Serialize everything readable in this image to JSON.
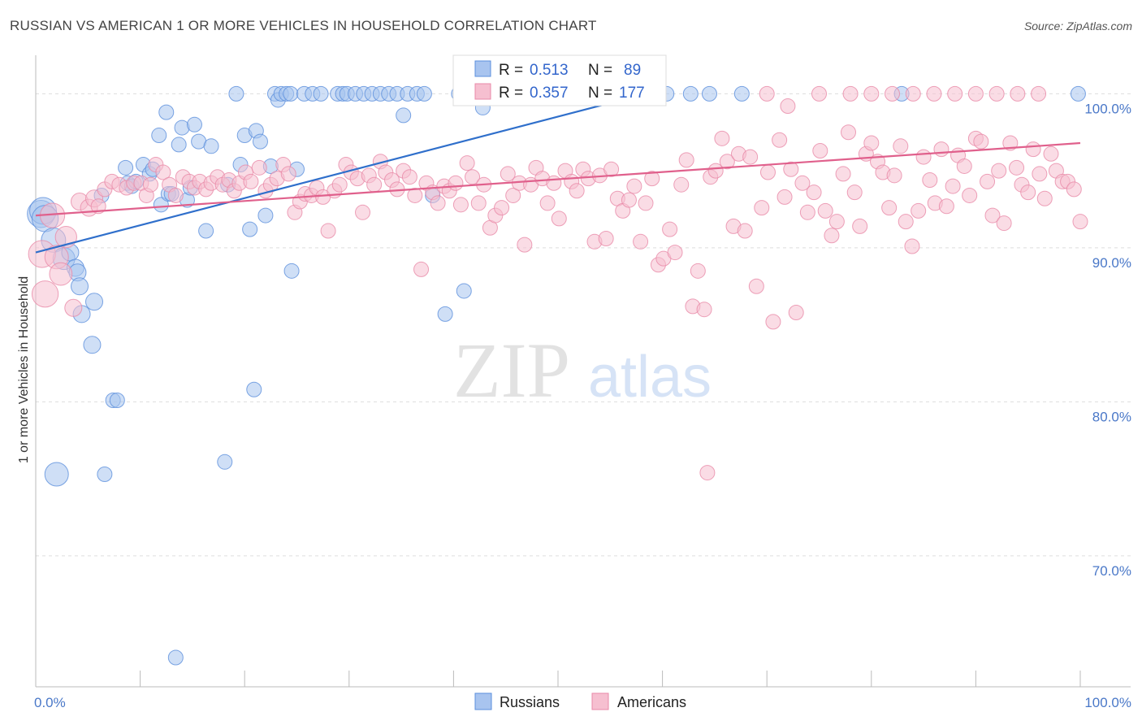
{
  "title": "RUSSIAN VS AMERICAN 1 OR MORE VEHICLES IN HOUSEHOLD CORRELATION CHART",
  "source": "Source: ZipAtlas.com",
  "watermark": {
    "zip": "ZIP",
    "atlas": "atlas"
  },
  "colors": {
    "russians_fill": "#a8c4ef",
    "russians_stroke": "#5b8fdc",
    "russians_line": "#2f6fcb",
    "americans_fill": "#f6bfd0",
    "americans_stroke": "#e88aa8",
    "americans_line": "#e0608c",
    "tick_text": "#4a78c8",
    "grid": "#dddddd"
  },
  "legend": {
    "rows": [
      {
        "r_label": "R = ",
        "r_value": "0.513",
        "n_label": "N = ",
        "n_value": "89"
      },
      {
        "r_label": "R = ",
        "r_value": "0.357",
        "n_label": "N = ",
        "n_value": "177"
      }
    ]
  },
  "chart_data": {
    "type": "scatter",
    "xlabel": "",
    "ylabel": "1 or more Vehicles in Household",
    "xlim": [
      0,
      100
    ],
    "ylim": [
      61.5,
      102.5
    ],
    "x_tick_labels": [
      "0.0%",
      "100.0%"
    ],
    "y_ticks": [
      {
        "value": 100,
        "label": "100.0%"
      },
      {
        "value": 90,
        "label": "90.0%"
      },
      {
        "value": 80,
        "label": "80.0%"
      },
      {
        "value": 70,
        "label": "70.0%"
      }
    ],
    "grid": true,
    "legend_position": "top-center",
    "series": [
      {
        "name": "Russians",
        "trend": {
          "x": [
            0,
            58.4
          ],
          "y": [
            89.7,
            100.0
          ]
        },
        "points": [
          [
            0.5,
            92.2
          ],
          [
            0.7,
            92.4
          ],
          [
            0.9,
            91.9
          ],
          [
            1.7,
            90.5
          ],
          [
            2.7,
            89.3
          ],
          [
            3.3,
            89.7
          ],
          [
            3.8,
            88.7
          ],
          [
            4.0,
            88.4
          ],
          [
            4.2,
            87.5
          ],
          [
            4.4,
            85.7
          ],
          [
            5.4,
            83.7
          ],
          [
            5.6,
            86.5
          ],
          [
            6.3,
            93.4
          ],
          [
            7.4,
            80.1
          ],
          [
            7.8,
            80.1
          ],
          [
            8.6,
            95.2
          ],
          [
            8.8,
            94.2
          ],
          [
            9.2,
            94.0
          ],
          [
            9.6,
            94.3
          ],
          [
            10.3,
            95.4
          ],
          [
            10.9,
            94.8
          ],
          [
            11.2,
            95.1
          ],
          [
            11.8,
            97.3
          ],
          [
            12.0,
            92.8
          ],
          [
            12.5,
            98.8
          ],
          [
            12.7,
            93.5
          ],
          [
            13.0,
            93.5
          ],
          [
            13.7,
            96.7
          ],
          [
            14.0,
            97.8
          ],
          [
            14.5,
            93.1
          ],
          [
            14.8,
            93.9
          ],
          [
            15.2,
            98.0
          ],
          [
            15.6,
            96.9
          ],
          [
            16.3,
            91.1
          ],
          [
            16.8,
            96.6
          ],
          [
            18.4,
            94.1
          ],
          [
            19.2,
            100.0
          ],
          [
            19.6,
            95.4
          ],
          [
            20.0,
            97.3
          ],
          [
            20.5,
            91.2
          ],
          [
            21.1,
            97.6
          ],
          [
            21.5,
            96.9
          ],
          [
            22.0,
            92.1
          ],
          [
            22.5,
            95.3
          ],
          [
            22.9,
            100.0
          ],
          [
            23.2,
            99.6
          ],
          [
            23.5,
            100.0
          ],
          [
            24.0,
            100.0
          ],
          [
            24.4,
            100.0
          ],
          [
            25.0,
            95.1
          ],
          [
            25.7,
            100.0
          ],
          [
            26.5,
            100.0
          ],
          [
            27.3,
            100.0
          ],
          [
            28.9,
            100.0
          ],
          [
            29.4,
            100.0
          ],
          [
            29.8,
            100.0
          ],
          [
            30.6,
            100.0
          ],
          [
            31.4,
            100.0
          ],
          [
            32.2,
            100.0
          ],
          [
            33.0,
            100.0
          ],
          [
            33.8,
            100.0
          ],
          [
            34.6,
            100.0
          ],
          [
            35.2,
            98.6
          ],
          [
            35.6,
            100.0
          ],
          [
            36.5,
            100.0
          ],
          [
            37.2,
            100.0
          ],
          [
            38.0,
            93.4
          ],
          [
            39.2,
            85.7
          ],
          [
            40.5,
            100.0
          ],
          [
            41.0,
            87.2
          ],
          [
            42.0,
            100.0
          ],
          [
            42.8,
            99.1
          ],
          [
            43.8,
            100.0
          ],
          [
            44.8,
            100.0
          ],
          [
            45.4,
            100.0
          ],
          [
            48.0,
            100.0
          ],
          [
            49.6,
            100.0
          ],
          [
            52.0,
            100.0
          ],
          [
            54.5,
            100.0
          ],
          [
            56.7,
            100.0
          ],
          [
            58.4,
            100.0
          ],
          [
            60.4,
            100.0
          ],
          [
            62.7,
            100.0
          ],
          [
            64.5,
            100.0
          ],
          [
            67.6,
            100.0
          ],
          [
            82.9,
            100.0
          ],
          [
            99.8,
            100.0
          ],
          [
            2.0,
            75.3
          ],
          [
            6.6,
            75.3
          ],
          [
            13.4,
            63.4
          ],
          [
            18.1,
            76.1
          ],
          [
            20.9,
            80.8
          ],
          [
            24.5,
            88.5
          ]
        ]
      },
      {
        "name": "Americans",
        "trend": {
          "x": [
            0,
            100
          ],
          "y": [
            92.1,
            96.8
          ]
        },
        "points": [
          [
            0.6,
            89.6
          ],
          [
            0.9,
            87.0
          ],
          [
            1.6,
            92.1
          ],
          [
            2.0,
            89.4
          ],
          [
            2.4,
            88.3
          ],
          [
            2.9,
            90.7
          ],
          [
            3.6,
            86.1
          ],
          [
            4.2,
            93.0
          ],
          [
            5.1,
            92.6
          ],
          [
            5.6,
            93.2
          ],
          [
            6.0,
            92.7
          ],
          [
            6.6,
            93.8
          ],
          [
            7.3,
            94.3
          ],
          [
            8.0,
            94.1
          ],
          [
            8.7,
            93.9
          ],
          [
            9.4,
            94.2
          ],
          [
            10.1,
            94.2
          ],
          [
            10.6,
            93.4
          ],
          [
            11.0,
            94.1
          ],
          [
            11.5,
            95.4
          ],
          [
            12.2,
            94.9
          ],
          [
            12.8,
            94.1
          ],
          [
            13.4,
            93.4
          ],
          [
            14.1,
            94.6
          ],
          [
            14.7,
            94.3
          ],
          [
            15.2,
            93.9
          ],
          [
            15.7,
            94.3
          ],
          [
            16.3,
            93.8
          ],
          [
            16.8,
            94.2
          ],
          [
            17.4,
            94.6
          ],
          [
            17.9,
            94.1
          ],
          [
            18.5,
            94.4
          ],
          [
            19.0,
            93.7
          ],
          [
            19.5,
            94.2
          ],
          [
            20.1,
            94.9
          ],
          [
            20.6,
            94.3
          ],
          [
            21.4,
            95.2
          ],
          [
            22.0,
            93.7
          ],
          [
            22.5,
            94.1
          ],
          [
            23.1,
            94.5
          ],
          [
            23.7,
            95.4
          ],
          [
            24.2,
            94.8
          ],
          [
            24.8,
            92.3
          ],
          [
            25.3,
            93.0
          ],
          [
            25.8,
            93.5
          ],
          [
            26.4,
            93.4
          ],
          [
            26.9,
            93.9
          ],
          [
            27.5,
            93.3
          ],
          [
            28.0,
            91.1
          ],
          [
            28.6,
            93.7
          ],
          [
            29.1,
            94.1
          ],
          [
            29.7,
            95.4
          ],
          [
            30.2,
            94.9
          ],
          [
            30.8,
            94.5
          ],
          [
            31.3,
            92.3
          ],
          [
            31.9,
            94.7
          ],
          [
            32.4,
            94.1
          ],
          [
            33.0,
            95.6
          ],
          [
            33.5,
            94.9
          ],
          [
            34.1,
            94.4
          ],
          [
            34.6,
            93.8
          ],
          [
            35.2,
            95.0
          ],
          [
            35.8,
            94.6
          ],
          [
            36.3,
            93.4
          ],
          [
            36.9,
            88.6
          ],
          [
            37.4,
            94.2
          ],
          [
            38.0,
            93.6
          ],
          [
            38.5,
            92.9
          ],
          [
            39.1,
            94.0
          ],
          [
            39.6,
            93.7
          ],
          [
            40.2,
            94.2
          ],
          [
            40.7,
            92.8
          ],
          [
            41.3,
            95.5
          ],
          [
            41.8,
            94.6
          ],
          [
            42.4,
            92.9
          ],
          [
            42.9,
            94.1
          ],
          [
            43.5,
            91.3
          ],
          [
            44.0,
            92.1
          ],
          [
            44.6,
            92.6
          ],
          [
            45.2,
            94.8
          ],
          [
            45.7,
            93.4
          ],
          [
            46.3,
            94.2
          ],
          [
            46.8,
            90.2
          ],
          [
            47.4,
            94.1
          ],
          [
            47.9,
            95.2
          ],
          [
            48.5,
            94.5
          ],
          [
            49.0,
            92.9
          ],
          [
            49.6,
            94.2
          ],
          [
            50.1,
            91.9
          ],
          [
            50.7,
            95.0
          ],
          [
            51.3,
            94.3
          ],
          [
            51.8,
            93.7
          ],
          [
            52.4,
            95.1
          ],
          [
            52.9,
            94.5
          ],
          [
            53.5,
            90.4
          ],
          [
            54.0,
            94.7
          ],
          [
            54.6,
            90.6
          ],
          [
            55.1,
            95.1
          ],
          [
            55.7,
            93.2
          ],
          [
            56.2,
            92.4
          ],
          [
            56.8,
            93.1
          ],
          [
            57.3,
            94.0
          ],
          [
            57.9,
            90.4
          ],
          [
            58.4,
            92.9
          ],
          [
            59.0,
            94.5
          ],
          [
            59.6,
            88.9
          ],
          [
            60.1,
            89.3
          ],
          [
            60.7,
            91.2
          ],
          [
            61.2,
            89.7
          ],
          [
            61.8,
            94.1
          ],
          [
            62.3,
            95.7
          ],
          [
            62.9,
            86.2
          ],
          [
            63.4,
            88.5
          ],
          [
            64.0,
            86.0
          ],
          [
            64.6,
            94.6
          ],
          [
            65.1,
            95.0
          ],
          [
            65.7,
            97.1
          ],
          [
            66.2,
            95.6
          ],
          [
            66.8,
            91.4
          ],
          [
            67.3,
            96.1
          ],
          [
            67.9,
            91.1
          ],
          [
            68.4,
            95.9
          ],
          [
            69.0,
            87.5
          ],
          [
            69.5,
            92.6
          ],
          [
            70.1,
            94.9
          ],
          [
            70.6,
            85.2
          ],
          [
            71.2,
            97.0
          ],
          [
            71.7,
            93.3
          ],
          [
            72.3,
            95.1
          ],
          [
            72.8,
            85.8
          ],
          [
            73.4,
            94.2
          ],
          [
            73.9,
            92.3
          ],
          [
            74.5,
            93.6
          ],
          [
            75.1,
            96.3
          ],
          [
            75.6,
            92.4
          ],
          [
            76.2,
            90.8
          ],
          [
            76.7,
            91.7
          ],
          [
            77.3,
            94.8
          ],
          [
            77.8,
            97.5
          ],
          [
            78.4,
            93.6
          ],
          [
            78.9,
            91.4
          ],
          [
            79.5,
            96.1
          ],
          [
            80.0,
            96.8
          ],
          [
            80.6,
            95.6
          ],
          [
            81.1,
            94.9
          ],
          [
            81.7,
            92.6
          ],
          [
            82.2,
            94.7
          ],
          [
            82.8,
            96.6
          ],
          [
            83.3,
            91.7
          ],
          [
            83.9,
            90.1
          ],
          [
            84.5,
            92.4
          ],
          [
            85.0,
            95.9
          ],
          [
            85.6,
            94.4
          ],
          [
            86.1,
            92.9
          ],
          [
            86.7,
            96.4
          ],
          [
            87.2,
            92.7
          ],
          [
            87.8,
            94.0
          ],
          [
            88.3,
            96.0
          ],
          [
            88.9,
            95.3
          ],
          [
            89.4,
            93.4
          ],
          [
            90.0,
            97.1
          ],
          [
            90.5,
            96.9
          ],
          [
            91.1,
            94.3
          ],
          [
            91.6,
            92.1
          ],
          [
            92.2,
            95.0
          ],
          [
            92.7,
            91.6
          ],
          [
            93.3,
            96.8
          ],
          [
            93.9,
            95.2
          ],
          [
            94.4,
            94.1
          ],
          [
            95.0,
            93.6
          ],
          [
            95.5,
            96.4
          ],
          [
            96.1,
            94.8
          ],
          [
            96.6,
            93.2
          ],
          [
            97.2,
            96.1
          ],
          [
            97.7,
            95.0
          ],
          [
            98.3,
            94.3
          ],
          [
            98.8,
            94.3
          ],
          [
            99.4,
            93.8
          ],
          [
            100.0,
            91.7
          ],
          [
            64.3,
            75.4
          ],
          [
            70.0,
            100.0
          ],
          [
            72.0,
            99.2
          ],
          [
            75.0,
            100.0
          ],
          [
            78.0,
            100.0
          ],
          [
            80.0,
            100.0
          ],
          [
            82.0,
            100.0
          ],
          [
            84.0,
            100.0
          ],
          [
            86.0,
            100.0
          ],
          [
            88.0,
            100.0
          ],
          [
            90.0,
            100.0
          ],
          [
            92.0,
            100.0
          ],
          [
            94.0,
            100.0
          ],
          [
            96.0,
            100.0
          ]
        ]
      }
    ]
  },
  "bottom_legend": [
    {
      "label": "Russians"
    },
    {
      "label": "Americans"
    }
  ]
}
